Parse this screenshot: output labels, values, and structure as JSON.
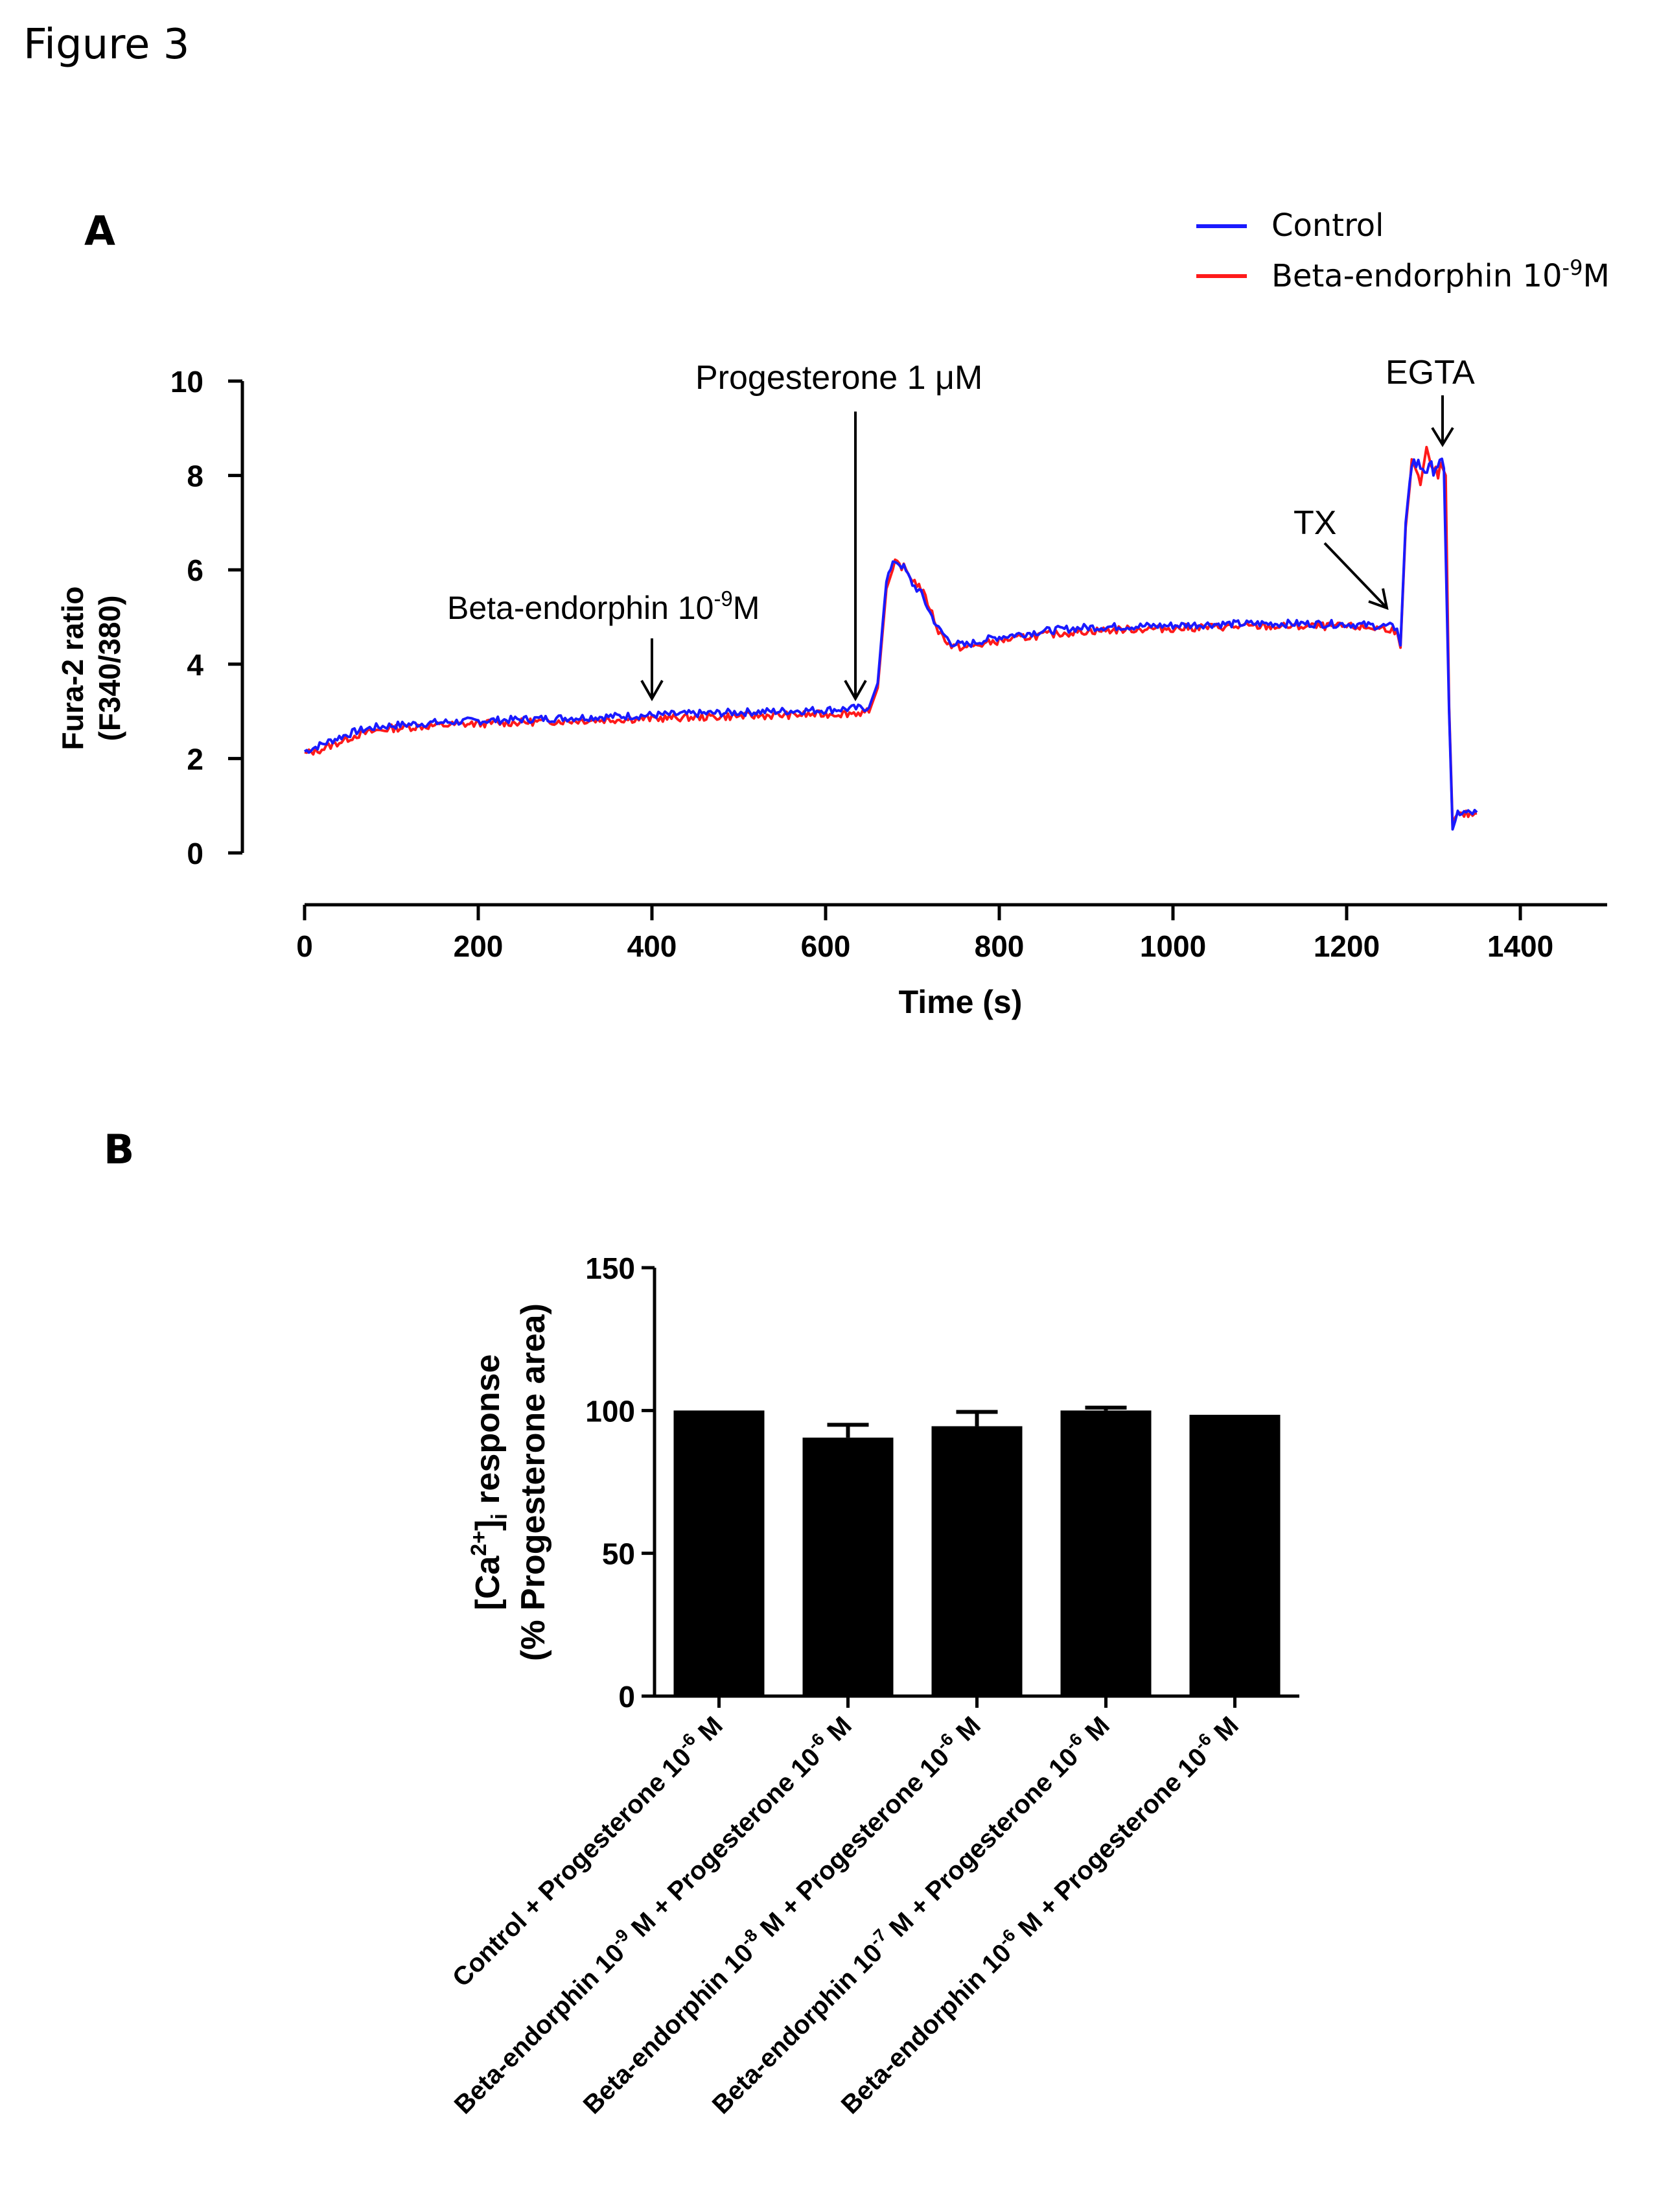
{
  "figure_title": "Figure 3",
  "colors": {
    "control": "#1a1aff",
    "beta": "#ff1a1a",
    "axis": "#000000",
    "bar": "#000000"
  },
  "chart_data": [
    {
      "panel": "A",
      "type": "line",
      "xlabel": "Time (s)",
      "ylabel_line1": "Fura-2 ratio",
      "ylabel_line2": "(F340/380)",
      "xlim": [
        0,
        1500
      ],
      "ylim": [
        0,
        10
      ],
      "xticks": [
        0,
        200,
        400,
        600,
        800,
        1000,
        1200,
        1400
      ],
      "yticks": [
        0,
        2,
        4,
        6,
        8,
        10
      ],
      "legend": {
        "position": "top-right",
        "entries": [
          {
            "label": "Control",
            "color": "#1a1aff"
          },
          {
            "label_main": "Beta-endorphin 10",
            "label_sup": "-9",
            "label_end": "M",
            "color": "#ff1a1a"
          }
        ]
      },
      "annotations": [
        {
          "text_main": "Beta-endorphin 10",
          "text_sup": "-9",
          "text_end": "M",
          "x": 400,
          "y": 3.1
        },
        {
          "text": "Progesterone  1 μM",
          "x": 635,
          "y": 3.1
        },
        {
          "text": "TX",
          "x": 1255,
          "y": 5.0
        },
        {
          "text": "EGTA",
          "x": 1305,
          "y": 8.5
        }
      ],
      "series": [
        {
          "name": "Control",
          "color": "#1a1aff",
          "points": [
            [
              0,
              2.15
            ],
            [
              20,
              2.3
            ],
            [
              40,
              2.45
            ],
            [
              60,
              2.58
            ],
            [
              80,
              2.66
            ],
            [
              100,
              2.7
            ],
            [
              150,
              2.76
            ],
            [
              200,
              2.8
            ],
            [
              300,
              2.86
            ],
            [
              400,
              2.92
            ],
            [
              500,
              2.98
            ],
            [
              600,
              3.03
            ],
            [
              650,
              3.08
            ],
            [
              660,
              3.6
            ],
            [
              670,
              5.8
            ],
            [
              680,
              6.2
            ],
            [
              690,
              6.05
            ],
            [
              700,
              5.7
            ],
            [
              710,
              5.5
            ],
            [
              720,
              5.1
            ],
            [
              730,
              4.75
            ],
            [
              745,
              4.45
            ],
            [
              760,
              4.4
            ],
            [
              780,
              4.5
            ],
            [
              800,
              4.58
            ],
            [
              850,
              4.7
            ],
            [
              900,
              4.78
            ],
            [
              950,
              4.8
            ],
            [
              1000,
              4.82
            ],
            [
              1050,
              4.85
            ],
            [
              1100,
              4.86
            ],
            [
              1150,
              4.86
            ],
            [
              1200,
              4.85
            ],
            [
              1250,
              4.8
            ],
            [
              1258,
              4.75
            ],
            [
              1262,
              4.4
            ],
            [
              1268,
              7.0
            ],
            [
              1275,
              8.3
            ],
            [
              1285,
              8.2
            ],
            [
              1295,
              8.1
            ],
            [
              1305,
              8.25
            ],
            [
              1312,
              8.15
            ],
            [
              1318,
              3.0
            ],
            [
              1322,
              0.5
            ],
            [
              1328,
              0.85
            ],
            [
              1340,
              0.85
            ],
            [
              1350,
              0.86
            ]
          ]
        },
        {
          "name_main": "Beta-endorphin 10",
          "name_sup": "-9",
          "name_end": "M",
          "color": "#ff1a1a",
          "points": [
            [
              0,
              2.1
            ],
            [
              20,
              2.2
            ],
            [
              40,
              2.35
            ],
            [
              60,
              2.5
            ],
            [
              80,
              2.58
            ],
            [
              100,
              2.64
            ],
            [
              150,
              2.7
            ],
            [
              200,
              2.74
            ],
            [
              300,
              2.8
            ],
            [
              400,
              2.85
            ],
            [
              500,
              2.9
            ],
            [
              600,
              2.94
            ],
            [
              650,
              2.98
            ],
            [
              660,
              3.5
            ],
            [
              670,
              5.6
            ],
            [
              680,
              6.15
            ],
            [
              690,
              6.05
            ],
            [
              700,
              5.8
            ],
            [
              710,
              5.6
            ],
            [
              720,
              5.2
            ],
            [
              730,
              4.7
            ],
            [
              745,
              4.38
            ],
            [
              760,
              4.35
            ],
            [
              780,
              4.42
            ],
            [
              800,
              4.5
            ],
            [
              850,
              4.62
            ],
            [
              900,
              4.7
            ],
            [
              950,
              4.74
            ],
            [
              1000,
              4.76
            ],
            [
              1050,
              4.79
            ],
            [
              1100,
              4.8
            ],
            [
              1150,
              4.8
            ],
            [
              1200,
              4.8
            ],
            [
              1250,
              4.75
            ],
            [
              1258,
              4.7
            ],
            [
              1262,
              4.35
            ],
            [
              1268,
              6.9
            ],
            [
              1275,
              8.2
            ],
            [
              1285,
              7.8
            ],
            [
              1292,
              8.6
            ],
            [
              1300,
              8.0
            ],
            [
              1308,
              8.1
            ],
            [
              1314,
              8.0
            ],
            [
              1318,
              3.1
            ],
            [
              1322,
              0.6
            ],
            [
              1328,
              0.8
            ],
            [
              1340,
              0.82
            ],
            [
              1350,
              0.84
            ]
          ]
        }
      ]
    },
    {
      "panel": "B",
      "type": "bar",
      "ylabel_line1_main": "[Ca",
      "ylabel_line1_sup": "2+",
      "ylabel_line1_mid": "]",
      "ylabel_line1_sub": "i",
      "ylabel_line1_end": " response",
      "ylabel_line2": "(% Progesterone area)",
      "ylim": [
        0,
        150
      ],
      "yticks": [
        0,
        50,
        100,
        150
      ],
      "categories": [
        {
          "pre": "",
          "main": "Control + Progesterone 10",
          "sup": "-6",
          "end": " M"
        },
        {
          "pre": "Beta-endorphin 10",
          "pre_sup": "-9",
          "main": " M + Progesterone 10",
          "sup": "-6",
          "end": " M"
        },
        {
          "pre": "Beta-endorphin 10",
          "pre_sup": "-8",
          "main": " M + Progesterone 10",
          "sup": "-6",
          "end": " M"
        },
        {
          "pre": "Beta-endorphin 10",
          "pre_sup": "-7",
          "main": " M + Progesterone 10",
          "sup": "-6",
          "end": " M"
        },
        {
          "pre": "Beta-endorphin 10",
          "pre_sup": "-6",
          "main": " M + Progesterone 10",
          "sup": "-6",
          "end": " M"
        }
      ],
      "values": [
        100,
        90.5,
        94.5,
        100,
        98.5
      ],
      "errors": [
        0,
        4.5,
        5,
        1,
        0
      ]
    }
  ]
}
